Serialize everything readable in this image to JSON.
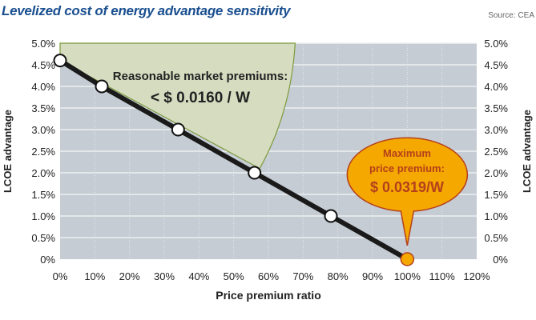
{
  "title": "Levelized cost of energy advantage sensitivity",
  "source": "Source: CEA",
  "chart_data": {
    "type": "line",
    "xlabel": "Price premium ratio",
    "ylabel": "LCOE advantage",
    "ylabel_right": "LCOE advantage",
    "xlim": [
      0,
      120
    ],
    "ylim": [
      0,
      5.0
    ],
    "x_ticks": [
      "0%",
      "10%",
      "20%",
      "30%",
      "40%",
      "50%",
      "60%",
      "70%",
      "80%",
      "90%",
      "100%",
      "110%",
      "120%"
    ],
    "y_ticks": [
      "0%",
      "0.5%",
      "1.0%",
      "1.5%",
      "2.0%",
      "2.5%",
      "3.0%",
      "3.5%",
      "4.0%",
      "4.5%",
      "5.0%"
    ],
    "grid": true,
    "x": [
      0,
      12,
      34,
      56,
      78,
      100
    ],
    "y": [
      4.6,
      4.0,
      3.0,
      2.0,
      1.0,
      0.0
    ],
    "region_label": [
      "Reasonable market premiums:",
      "< $ 0.0160 / W"
    ],
    "callout": [
      "Maximum",
      "price premium:",
      "$ 0.0319/W"
    ],
    "colors": {
      "plot_bg": "#c5ccd3",
      "region": "#d6dcc0",
      "region_stroke": "#7d9a3c",
      "line": "#1a1a1a",
      "callout": "#f5a800",
      "callout_text": "#b5401c",
      "title": "#1a4f8f"
    }
  }
}
